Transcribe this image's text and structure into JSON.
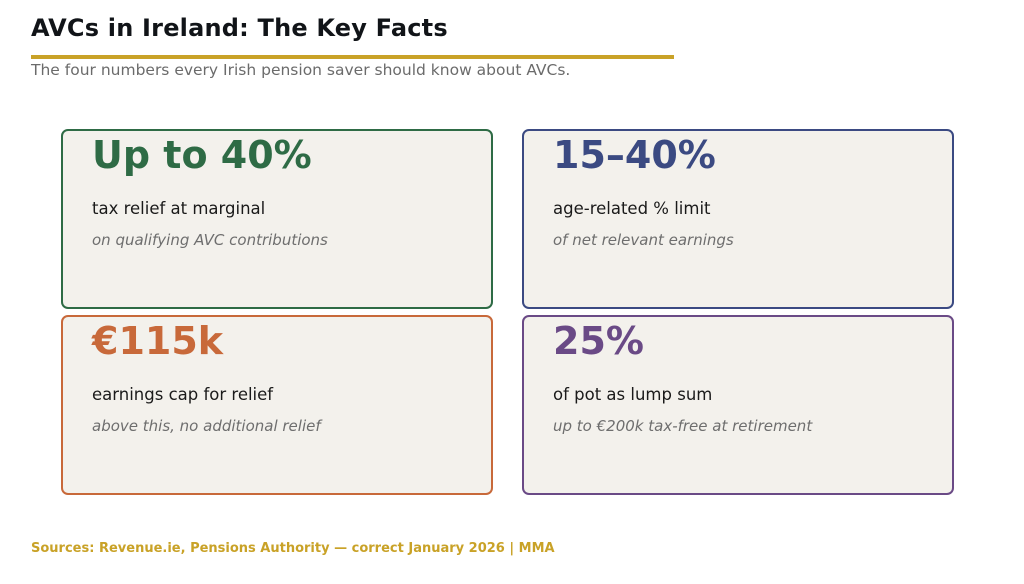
{
  "header": {
    "title": "AVCs in Ireland: The Key Facts",
    "subtitle": "The four numbers every Irish pension saver should know about AVCs."
  },
  "colors": {
    "accent_gold": "#c9a227",
    "green": "#2e6b45",
    "navy": "#3b4a82",
    "orange": "#c8693a",
    "purple": "#6a4a86",
    "card_bg": "#f3f1ec"
  },
  "cards": [
    {
      "stat": "Up to 40%",
      "label": "tax relief at marginal",
      "note": "on qualifying AVC contributions",
      "color": "#2e6b45"
    },
    {
      "stat": "15–40%",
      "label": "age-related % limit",
      "note": "of net relevant earnings",
      "color": "#3b4a82"
    },
    {
      "stat": "€115k",
      "label": "earnings cap for relief",
      "note": "above this, no additional relief",
      "color": "#c8693a"
    },
    {
      "stat": "25%",
      "label": "of pot as lump sum",
      "note": "up to €200k tax-free at retirement",
      "color": "#6a4a86"
    }
  ],
  "footer": {
    "text": "Sources: Revenue.ie, Pensions Authority — correct January 2026  |  MMA"
  }
}
